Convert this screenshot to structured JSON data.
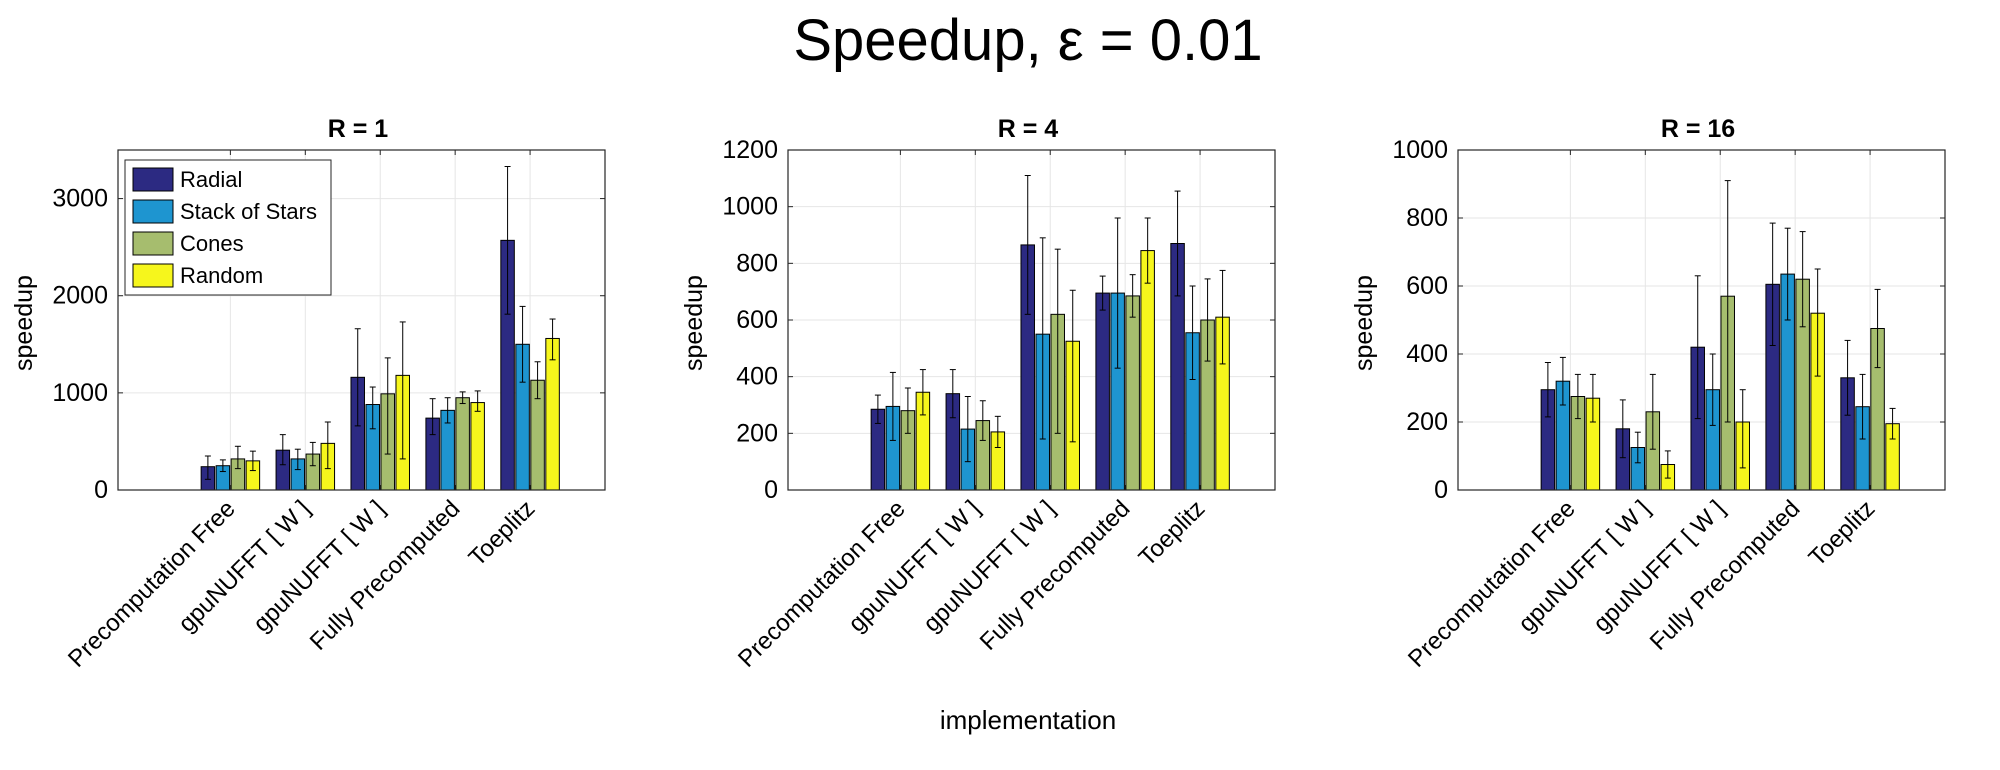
{
  "figure": {
    "title": "Speedup, ε = 0.01",
    "xlabel": "implementation"
  },
  "colors": {
    "Radial": "#2c2a82",
    "Stack of Stars": "#1e95d0",
    "Cones": "#a6bd6e",
    "Random": "#f6f61c",
    "axis": "#262626",
    "grid": "#e6e6e6"
  },
  "chart_data": [
    {
      "type": "bar",
      "title": "R = 1",
      "xlabel": "",
      "ylabel": "speedup",
      "ylim": [
        0,
        3500
      ],
      "yticks": [
        0,
        1000,
        2000,
        3000
      ],
      "grid": true,
      "legend": "top-left",
      "categories": [
        "Precomputation Free",
        "gpuNUFFT [ W ]",
        "gpuNUFFT [ W ]",
        "Fully Precomputed",
        "Toeplitz"
      ],
      "series": [
        {
          "name": "Radial",
          "values": [
            240,
            410,
            1160,
            740,
            2570
          ],
          "err_low": [
            130,
            150,
            500,
            170,
            760
          ],
          "err_high": [
            110,
            160,
            500,
            200,
            760
          ]
        },
        {
          "name": "Stack of Stars",
          "values": [
            250,
            320,
            880,
            820,
            1500
          ],
          "err_low": [
            60,
            110,
            250,
            130,
            390
          ],
          "err_high": [
            60,
            100,
            180,
            130,
            390
          ]
        },
        {
          "name": "Cones",
          "values": [
            320,
            370,
            990,
            950,
            1130
          ],
          "err_low": [
            100,
            120,
            620,
            60,
            190
          ],
          "err_high": [
            130,
            120,
            370,
            60,
            190
          ]
        },
        {
          "name": "Random",
          "values": [
            300,
            480,
            1180,
            900,
            1560
          ],
          "err_low": [
            100,
            260,
            860,
            90,
            220
          ],
          "err_high": [
            100,
            220,
            550,
            120,
            200
          ]
        }
      ]
    },
    {
      "type": "bar",
      "title": "R = 4",
      "xlabel": "",
      "ylabel": "speedup",
      "ylim": [
        0,
        1200
      ],
      "yticks": [
        0,
        200,
        400,
        600,
        800,
        1000,
        1200
      ],
      "grid": true,
      "categories": [
        "Precomputation Free",
        "gpuNUFFT [ W ]",
        "gpuNUFFT [ W ]",
        "Fully Precomputed",
        "Toeplitz"
      ],
      "series": [
        {
          "name": "Radial",
          "values": [
            285,
            340,
            865,
            695,
            870
          ],
          "err_low": [
            50,
            85,
            245,
            60,
            185
          ],
          "err_high": [
            50,
            85,
            245,
            60,
            185
          ]
        },
        {
          "name": "Stack of Stars",
          "values": [
            295,
            215,
            550,
            695,
            555
          ],
          "err_low": [
            120,
            115,
            370,
            265,
            165
          ],
          "err_high": [
            120,
            115,
            340,
            265,
            165
          ]
        },
        {
          "name": "Cones",
          "values": [
            280,
            245,
            620,
            685,
            600
          ],
          "err_low": [
            80,
            70,
            420,
            75,
            145
          ],
          "err_high": [
            80,
            70,
            230,
            75,
            145
          ]
        },
        {
          "name": "Random",
          "values": [
            345,
            205,
            525,
            845,
            610
          ],
          "err_low": [
            80,
            55,
            355,
            115,
            165
          ],
          "err_high": [
            80,
            55,
            180,
            115,
            165
          ]
        }
      ]
    },
    {
      "type": "bar",
      "title": "R = 16",
      "xlabel": "",
      "ylabel": "speedup",
      "ylim": [
        0,
        1000
      ],
      "yticks": [
        0,
        200,
        400,
        600,
        800,
        1000
      ],
      "grid": true,
      "categories": [
        "Precomputation Free",
        "gpuNUFFT [ W ]",
        "gpuNUFFT [ W ]",
        "Fully Precomputed",
        "Toeplitz"
      ],
      "series": [
        {
          "name": "Radial",
          "values": [
            295,
            180,
            420,
            605,
            330
          ],
          "err_low": [
            80,
            85,
            210,
            180,
            110
          ],
          "err_high": [
            80,
            85,
            210,
            180,
            110
          ]
        },
        {
          "name": "Stack of Stars",
          "values": [
            320,
            125,
            295,
            635,
            245
          ],
          "err_low": [
            70,
            45,
            105,
            135,
            95
          ],
          "err_high": [
            70,
            45,
            105,
            135,
            95
          ]
        },
        {
          "name": "Cones",
          "values": [
            275,
            230,
            570,
            620,
            475
          ],
          "err_low": [
            65,
            110,
            370,
            140,
            115
          ],
          "err_high": [
            65,
            110,
            340,
            140,
            115
          ]
        },
        {
          "name": "Random",
          "values": [
            270,
            75,
            200,
            520,
            195
          ],
          "err_low": [
            70,
            40,
            135,
            185,
            45
          ],
          "err_high": [
            70,
            40,
            95,
            130,
            45
          ]
        }
      ]
    }
  ]
}
